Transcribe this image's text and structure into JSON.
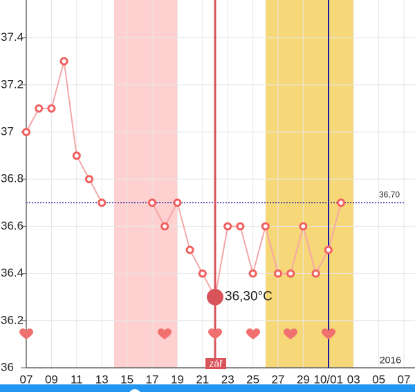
{
  "chart_data": {
    "type": "line",
    "categories": [
      "07",
      null,
      "09",
      null,
      "11",
      null,
      "13",
      null,
      "15",
      null,
      "17",
      null,
      "19",
      null,
      "21",
      null,
      "23",
      null,
      "25",
      null,
      "27",
      null,
      "29",
      null,
      "10/01",
      null,
      "03",
      null,
      "05",
      null,
      "07"
    ],
    "series": [
      {
        "color": "#f4a7a7",
        "values": [
          37.0,
          37.1,
          37.1,
          37.3,
          36.9,
          36.8,
          36.7,
          null,
          null,
          null,
          36.7,
          36.6,
          36.7,
          36.5,
          36.4,
          36.3,
          36.6,
          36.6,
          36.4,
          36.6,
          36.4,
          36.4,
          36.6,
          36.4,
          36.5,
          36.7,
          null,
          null,
          null,
          null,
          null
        ],
        "value_labels": [
          null,
          null,
          null,
          null,
          null,
          null,
          null,
          null,
          null,
          null,
          null,
          null,
          null,
          null,
          null,
          "36,30°C",
          null,
          null,
          null,
          null,
          null,
          null,
          null,
          null,
          null,
          null,
          null,
          null,
          null,
          null,
          null
        ]
      }
    ],
    "ylim": [
      36,
      37.56
    ],
    "yticks": [
      36,
      36.2,
      36.4,
      36.6,
      36.8,
      {
        "value": 37,
        "label": "37"
      },
      37.2,
      37.4
    ],
    "reference_line": {
      "value": 36.7,
      "label": "36,70",
      "color": "#1a1a9e"
    },
    "month_label": "zář",
    "year_label": "2016",
    "grid": true
  }
}
